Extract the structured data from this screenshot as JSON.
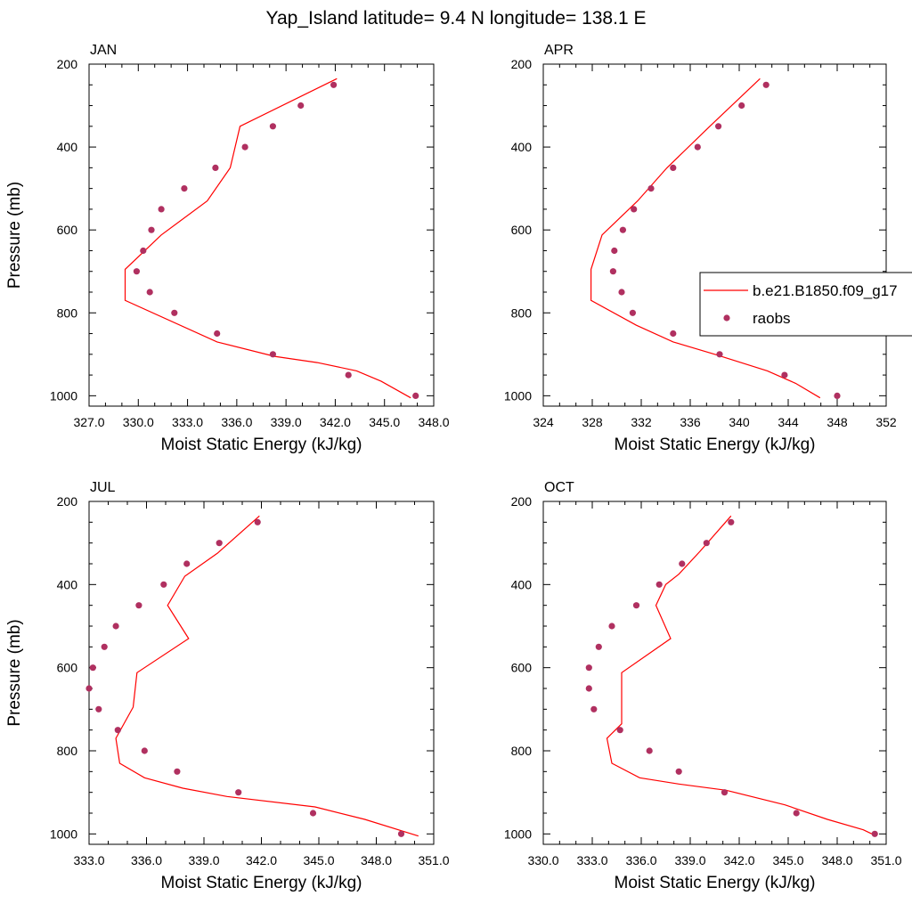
{
  "figure": {
    "title": "Yap_Island  latitude= 9.4 N longitude= 138.1 E"
  },
  "legend": {
    "entries": [
      {
        "label": "b.e21.B1850.f09_g17",
        "kind": "line",
        "color": "#ff0000"
      },
      {
        "label": "raobs",
        "kind": "marker",
        "color": "#b03060"
      }
    ]
  },
  "colors": {
    "model_line": "#ff0000",
    "obs_marker": "#b03060"
  },
  "chart_data": [
    {
      "type": "line",
      "panel": "JAN",
      "xlabel": "Moist Static Energy (kJ/kg)",
      "ylabel": "Pressure (mb)",
      "xlim": [
        327,
        348
      ],
      "xticks": [
        327,
        330,
        333,
        336,
        339,
        342,
        345,
        348
      ],
      "xtick_labels": [
        "327.0",
        "330.0",
        "333.0",
        "336.0",
        "339.0",
        "342.0",
        "345.0",
        "348.0"
      ],
      "ylim": [
        200,
        1025
      ],
      "yticks": [
        200,
        400,
        600,
        800,
        1000
      ],
      "y_inverted": true,
      "series": [
        {
          "name": "b.e21.B1850.f09_g17",
          "kind": "line",
          "x": [
            342.1,
            336.2,
            335.6,
            334.2,
            331.4,
            329.2,
            329.2,
            334.8,
            338.3,
            340.9,
            343.3,
            344.8,
            346.6
          ],
          "y": [
            235,
            350,
            450,
            530,
            612,
            695,
            770,
            870,
            905,
            920,
            940,
            965,
            1005
          ]
        },
        {
          "name": "raobs",
          "kind": "marker",
          "x": [
            341.9,
            339.9,
            338.2,
            336.5,
            334.7,
            332.8,
            331.4,
            330.8,
            330.3,
            329.9,
            330.7,
            332.2,
            334.8,
            338.2,
            342.8,
            346.9
          ],
          "y": [
            250,
            300,
            350,
            400,
            450,
            500,
            550,
            600,
            650,
            700,
            750,
            800,
            850,
            900,
            950,
            1000
          ]
        }
      ]
    },
    {
      "type": "line",
      "panel": "APR",
      "xlabel": "Moist Static Energy (kJ/kg)",
      "ylabel": "",
      "xlim": [
        324,
        352
      ],
      "xticks": [
        324,
        328,
        332,
        336,
        340,
        344,
        348,
        352
      ],
      "xtick_labels": [
        "324",
        "328",
        "332",
        "336",
        "340",
        "344",
        "348",
        "352"
      ],
      "ylim": [
        200,
        1025
      ],
      "yticks": [
        200,
        400,
        600,
        800,
        1000
      ],
      "y_inverted": true,
      "series": [
        {
          "name": "b.e21.B1850.f09_g17",
          "kind": "line",
          "x": [
            341.7,
            337.6,
            334.1,
            331.7,
            328.8,
            327.9,
            327.9,
            331.6,
            334.6,
            338.0,
            342.3,
            344.6,
            346.6
          ],
          "y": [
            235,
            350,
            450,
            530,
            612,
            695,
            770,
            830,
            870,
            900,
            940,
            970,
            1005
          ]
        },
        {
          "name": "raobs",
          "kind": "marker",
          "x": [
            342.2,
            340.2,
            338.3,
            336.6,
            334.6,
            332.8,
            331.4,
            330.5,
            329.8,
            329.7,
            330.4,
            331.3,
            334.6,
            338.4,
            343.7,
            348.0
          ],
          "y": [
            250,
            300,
            350,
            400,
            450,
            500,
            550,
            600,
            650,
            700,
            750,
            800,
            850,
            900,
            950,
            1000
          ]
        }
      ]
    },
    {
      "type": "line",
      "panel": "JUL",
      "xlabel": "Moist Static Energy (kJ/kg)",
      "ylabel": "Pressure (mb)",
      "xlim": [
        333,
        351
      ],
      "xticks": [
        333,
        336,
        339,
        342,
        345,
        348,
        351
      ],
      "xtick_labels": [
        "333.0",
        "336.0",
        "339.0",
        "342.0",
        "345.0",
        "348.0",
        "351.0"
      ],
      "ylim": [
        200,
        1025
      ],
      "yticks": [
        200,
        400,
        600,
        800,
        1000
      ],
      "y_inverted": true,
      "series": [
        {
          "name": "b.e21.B1850.f09_g17",
          "kind": "line",
          "x": [
            341.9,
            339.7,
            338.0,
            337.1,
            338.2,
            335.5,
            335.3,
            334.4,
            334.6,
            335.9,
            337.9,
            340.2,
            344.8,
            347.4,
            350.2
          ],
          "y": [
            235,
            325,
            380,
            450,
            530,
            612,
            695,
            770,
            830,
            865,
            890,
            910,
            935,
            965,
            1005
          ]
        },
        {
          "name": "raobs",
          "kind": "marker",
          "x": [
            341.8,
            339.8,
            338.1,
            336.9,
            335.6,
            334.4,
            333.8,
            333.2,
            333.0,
            333.5,
            334.5,
            335.9,
            337.6,
            340.8,
            344.7,
            349.3
          ],
          "y": [
            250,
            300,
            350,
            400,
            450,
            500,
            550,
            600,
            650,
            700,
            750,
            800,
            850,
            900,
            950,
            1000
          ]
        }
      ]
    },
    {
      "type": "line",
      "panel": "OCT",
      "xlabel": "Moist Static Energy (kJ/kg)",
      "ylabel": "",
      "xlim": [
        330,
        351
      ],
      "xticks": [
        330,
        333,
        336,
        339,
        342,
        345,
        348,
        351
      ],
      "xtick_labels": [
        "330.0",
        "333.0",
        "336.0",
        "339.0",
        "342.0",
        "345.0",
        "348.0",
        "351.0"
      ],
      "ylim": [
        200,
        1025
      ],
      "yticks": [
        200,
        400,
        600,
        800,
        1000
      ],
      "y_inverted": true,
      "series": [
        {
          "name": "b.e21.B1850.f09_g17",
          "kind": "line",
          "x": [
            341.5,
            339.6,
            338.3,
            337.5,
            336.9,
            337.8,
            334.8,
            334.8,
            334.8,
            333.9,
            334.2,
            335.9,
            338.3,
            341.2,
            344.8,
            347.4,
            349.6,
            350.4
          ],
          "y": [
            235,
            320,
            375,
            400,
            450,
            530,
            612,
            695,
            735,
            770,
            830,
            865,
            880,
            895,
            930,
            965,
            990,
            1005
          ]
        },
        {
          "name": "raobs",
          "kind": "marker",
          "x": [
            341.5,
            340.0,
            338.5,
            337.1,
            335.7,
            334.2,
            333.4,
            332.8,
            332.8,
            333.1,
            334.7,
            336.5,
            338.3,
            341.1,
            345.5,
            350.3
          ],
          "y": [
            250,
            300,
            350,
            400,
            450,
            500,
            550,
            600,
            650,
            700,
            750,
            800,
            850,
            900,
            950,
            1000
          ]
        }
      ]
    }
  ]
}
